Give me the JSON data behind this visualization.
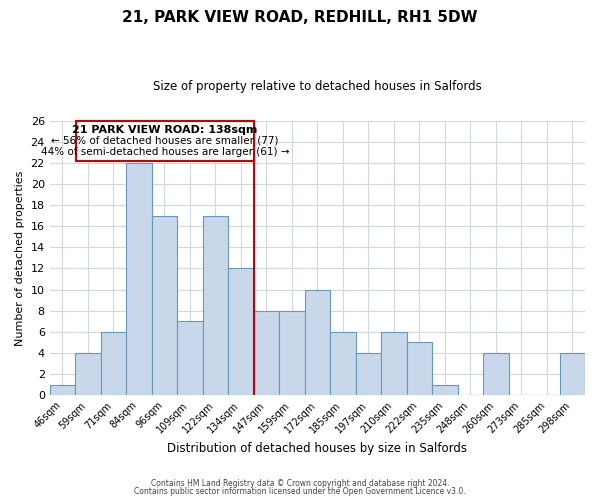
{
  "title": "21, PARK VIEW ROAD, REDHILL, RH1 5DW",
  "subtitle": "Size of property relative to detached houses in Salfords",
  "xlabel": "Distribution of detached houses by size in Salfords",
  "ylabel": "Number of detached properties",
  "bin_labels": [
    "46sqm",
    "59sqm",
    "71sqm",
    "84sqm",
    "96sqm",
    "109sqm",
    "122sqm",
    "134sqm",
    "147sqm",
    "159sqm",
    "172sqm",
    "185sqm",
    "197sqm",
    "210sqm",
    "222sqm",
    "235sqm",
    "248sqm",
    "260sqm",
    "273sqm",
    "285sqm",
    "298sqm"
  ],
  "bar_heights": [
    1,
    4,
    6,
    22,
    17,
    7,
    17,
    12,
    8,
    8,
    10,
    6,
    4,
    6,
    5,
    1,
    0,
    4,
    0,
    0,
    4
  ],
  "bar_color": "#c8d8ea",
  "bar_edge_color": "#6699bb",
  "highlight_index": 7,
  "highlight_color": "#cc0000",
  "ylim": [
    0,
    26
  ],
  "yticks": [
    0,
    2,
    4,
    6,
    8,
    10,
    12,
    14,
    16,
    18,
    20,
    22,
    24,
    26
  ],
  "annotation_title": "21 PARK VIEW ROAD: 138sqm",
  "annotation_line1": "← 56% of detached houses are smaller (77)",
  "annotation_line2": "44% of semi-detached houses are larger (61) →",
  "annotation_box_color": "#ffffff",
  "annotation_border_color": "#cc0000",
  "footer_line1": "Contains HM Land Registry data © Crown copyright and database right 2024.",
  "footer_line2": "Contains public sector information licensed under the Open Government Licence v3.0.",
  "background_color": "#ffffff",
  "grid_color": "#d0d8e0"
}
